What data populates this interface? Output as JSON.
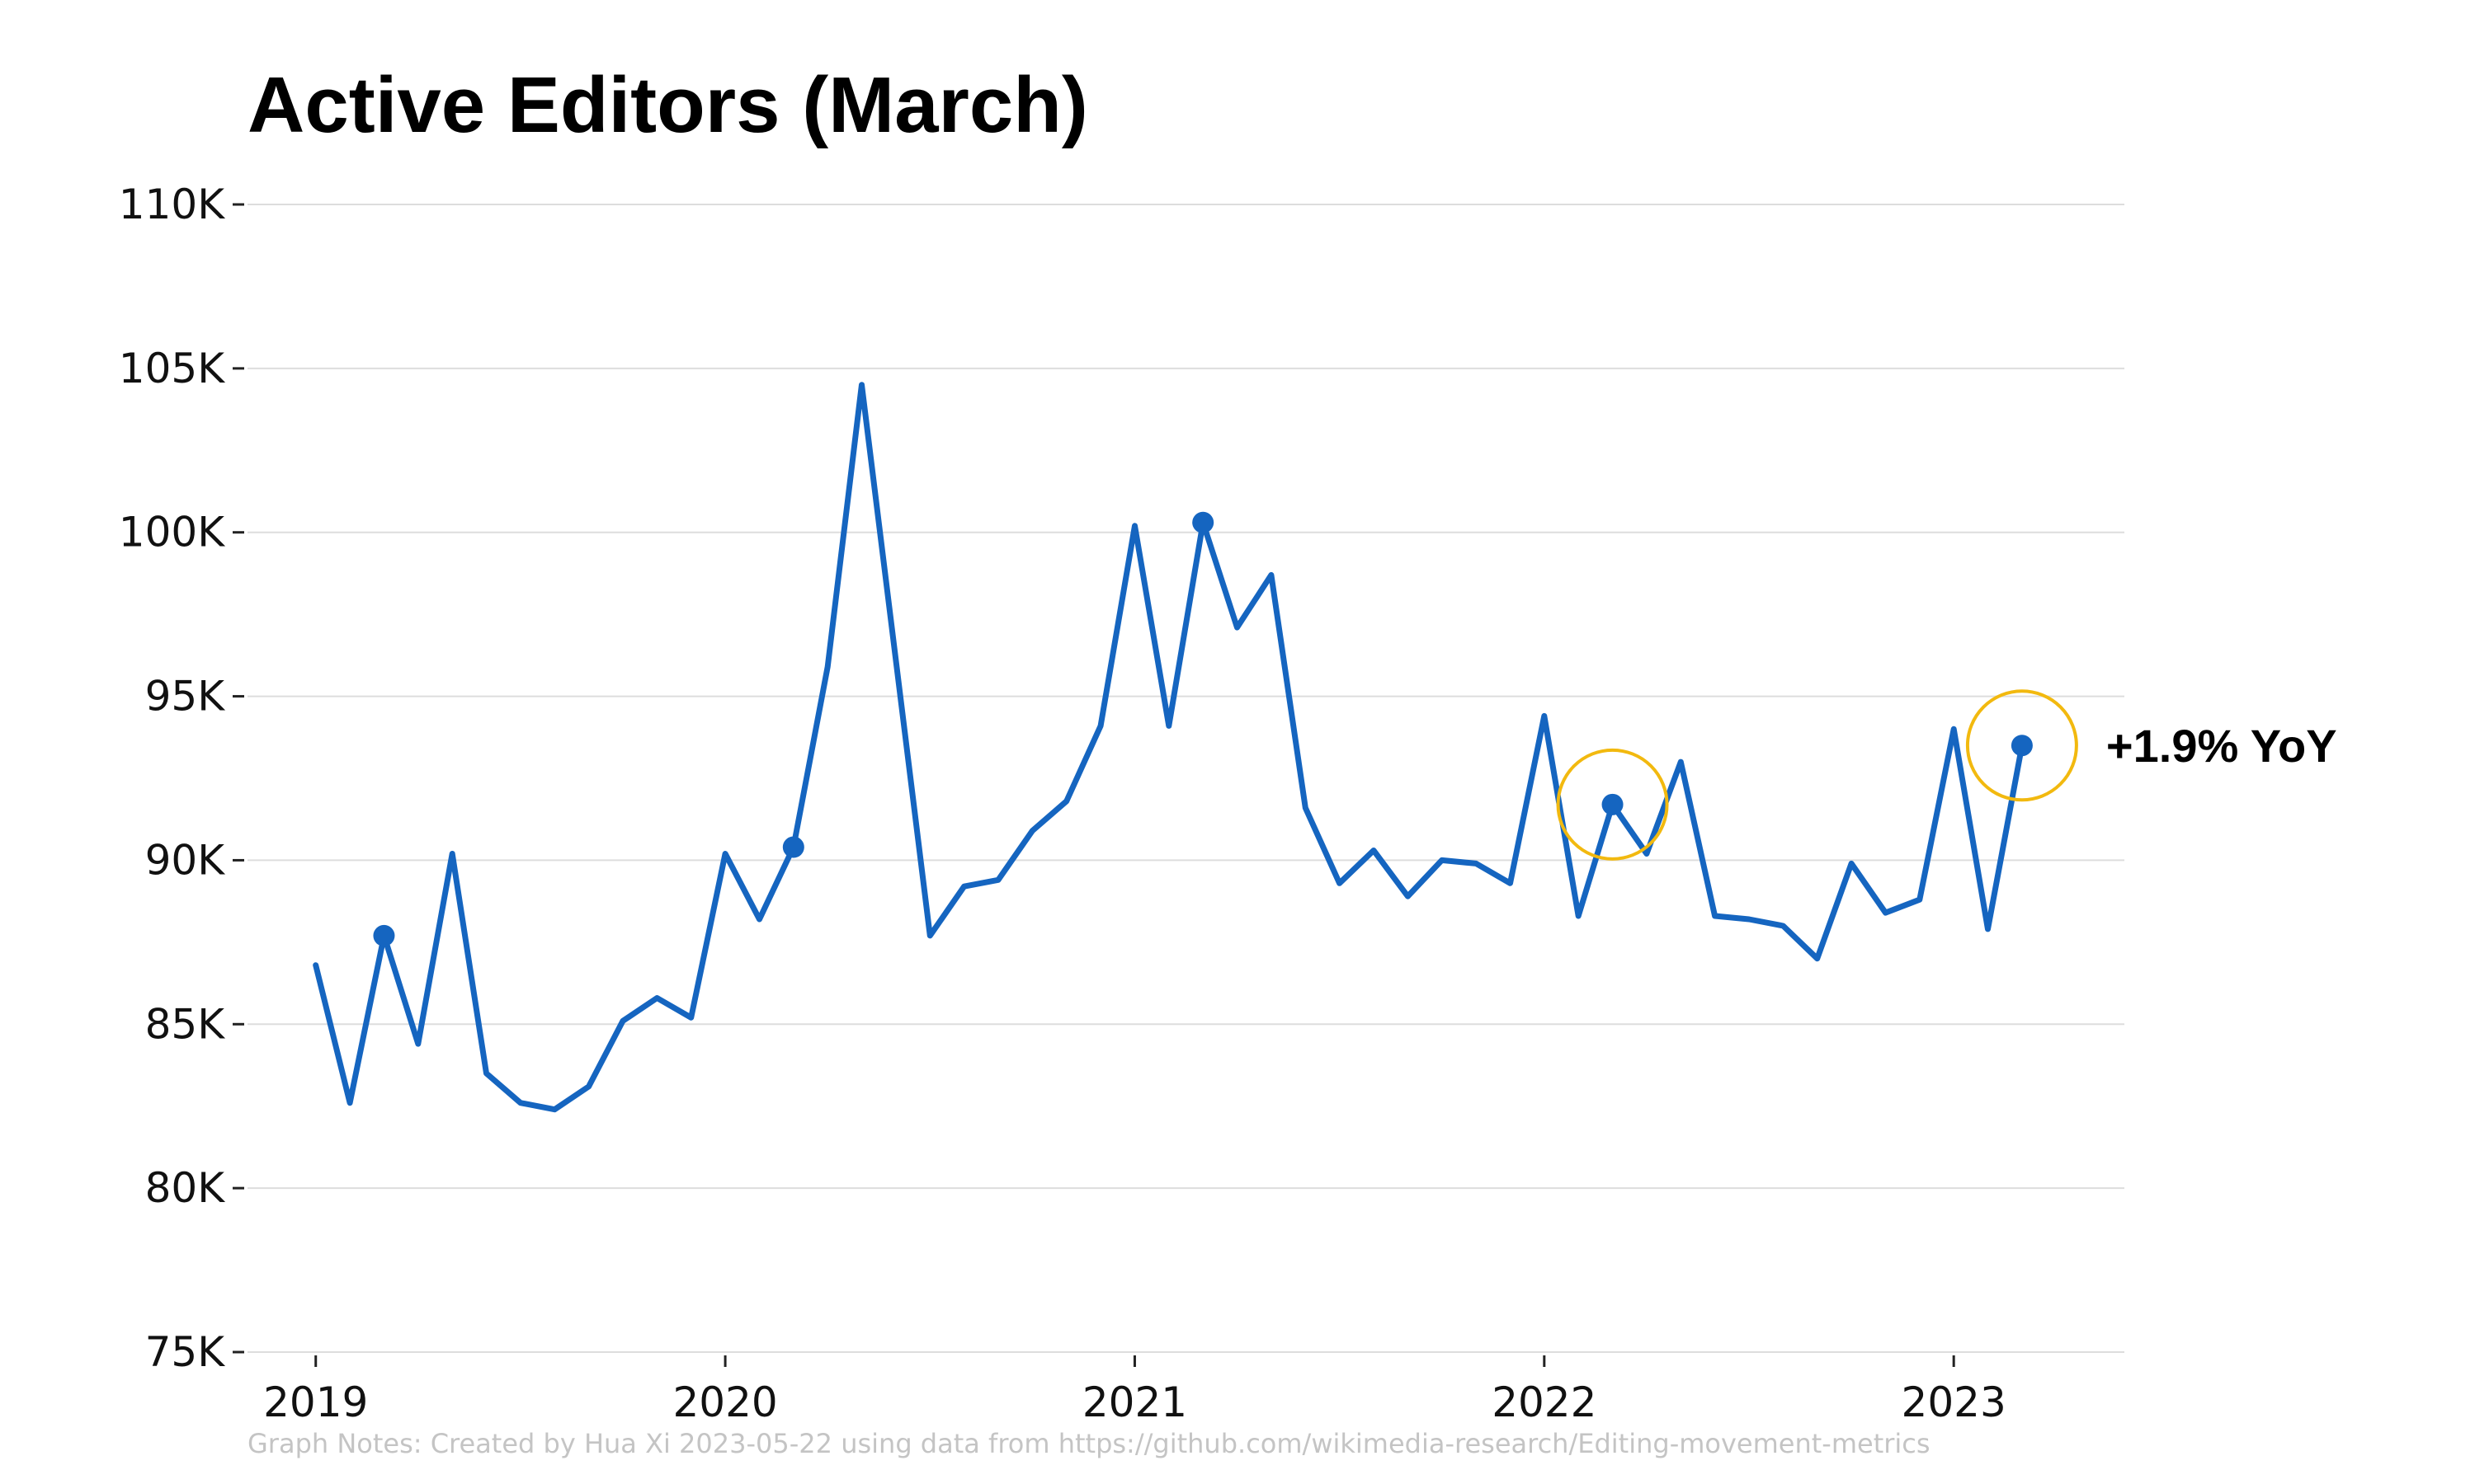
{
  "colors": {
    "line": "#1565c0",
    "marker": "#1565c0",
    "highlight_ring": "#f2b90f",
    "grid": "#dddddd",
    "axis": "#222222",
    "notes": "#c4c4c4"
  },
  "chart_data": {
    "type": "line",
    "title": "Active Editors (March)",
    "xlabel": "",
    "ylabel": "",
    "ylim": [
      75000,
      110000
    ],
    "xlim": [
      "2018-11",
      "2023-06"
    ],
    "grid": true,
    "y_ticks": [
      75000,
      80000,
      85000,
      90000,
      95000,
      100000,
      105000,
      110000
    ],
    "y_tick_labels": [
      "75K",
      "80K",
      "85K",
      "90K",
      "95K",
      "100K",
      "105K",
      "110K"
    ],
    "x_ticks": [
      "2019-01",
      "2020-01",
      "2021-01",
      "2022-01",
      "2023-01"
    ],
    "x_tick_labels": [
      "2019",
      "2020",
      "2021",
      "2022",
      "2023"
    ],
    "series": [
      {
        "x": [
          "2019-01",
          "2019-02",
          "2019-03",
          "2019-04",
          "2019-05",
          "2019-06",
          "2019-07",
          "2019-08",
          "2019-09",
          "2019-10",
          "2019-11",
          "2019-12",
          "2020-01",
          "2020-02",
          "2020-03",
          "2020-04",
          "2020-05",
          "2020-06",
          "2020-07",
          "2020-08",
          "2020-09",
          "2020-10",
          "2020-11",
          "2020-12",
          "2021-01",
          "2021-02",
          "2021-03",
          "2021-04",
          "2021-05",
          "2021-06",
          "2021-07",
          "2021-08",
          "2021-09",
          "2021-10",
          "2021-11",
          "2021-12",
          "2022-01",
          "2022-02",
          "2022-03",
          "2022-04",
          "2022-05",
          "2022-06",
          "2022-07",
          "2022-08",
          "2022-09",
          "2022-10",
          "2022-11",
          "2022-12",
          "2023-01",
          "2023-02",
          "2023-03"
        ],
        "values": [
          86800,
          82600,
          87700,
          84400,
          90200,
          83500,
          82600,
          82400,
          83100,
          85100,
          85800,
          85200,
          90200,
          88200,
          90400,
          95900,
          104500,
          96100,
          87700,
          89200,
          89400,
          90900,
          91800,
          94100,
          100200,
          94100,
          100300,
          97100,
          98700,
          91600,
          89300,
          90300,
          88900,
          90000,
          89900,
          89300,
          94400,
          88300,
          91700,
          90200,
          93000,
          88300,
          88200,
          88000,
          87000,
          89900,
          88400,
          88800,
          94000,
          87900,
          93500
        ]
      }
    ],
    "march_markers": [
      {
        "x": "2019-03",
        "y": 87700
      },
      {
        "x": "2020-03",
        "y": 90400
      },
      {
        "x": "2021-03",
        "y": 100300
      },
      {
        "x": "2022-03",
        "y": 91700
      },
      {
        "x": "2023-03",
        "y": 93500
      }
    ],
    "highlighted": [
      "2022-03",
      "2023-03"
    ],
    "annotations": [
      {
        "text": "+1.9% YoY",
        "x": "2023-03",
        "y": 93500
      }
    ],
    "notes": "Graph Notes: Created by Hua Xi 2023-05-22 using data from https://github.com/wikimedia-research/Editing-movement-metrics"
  }
}
